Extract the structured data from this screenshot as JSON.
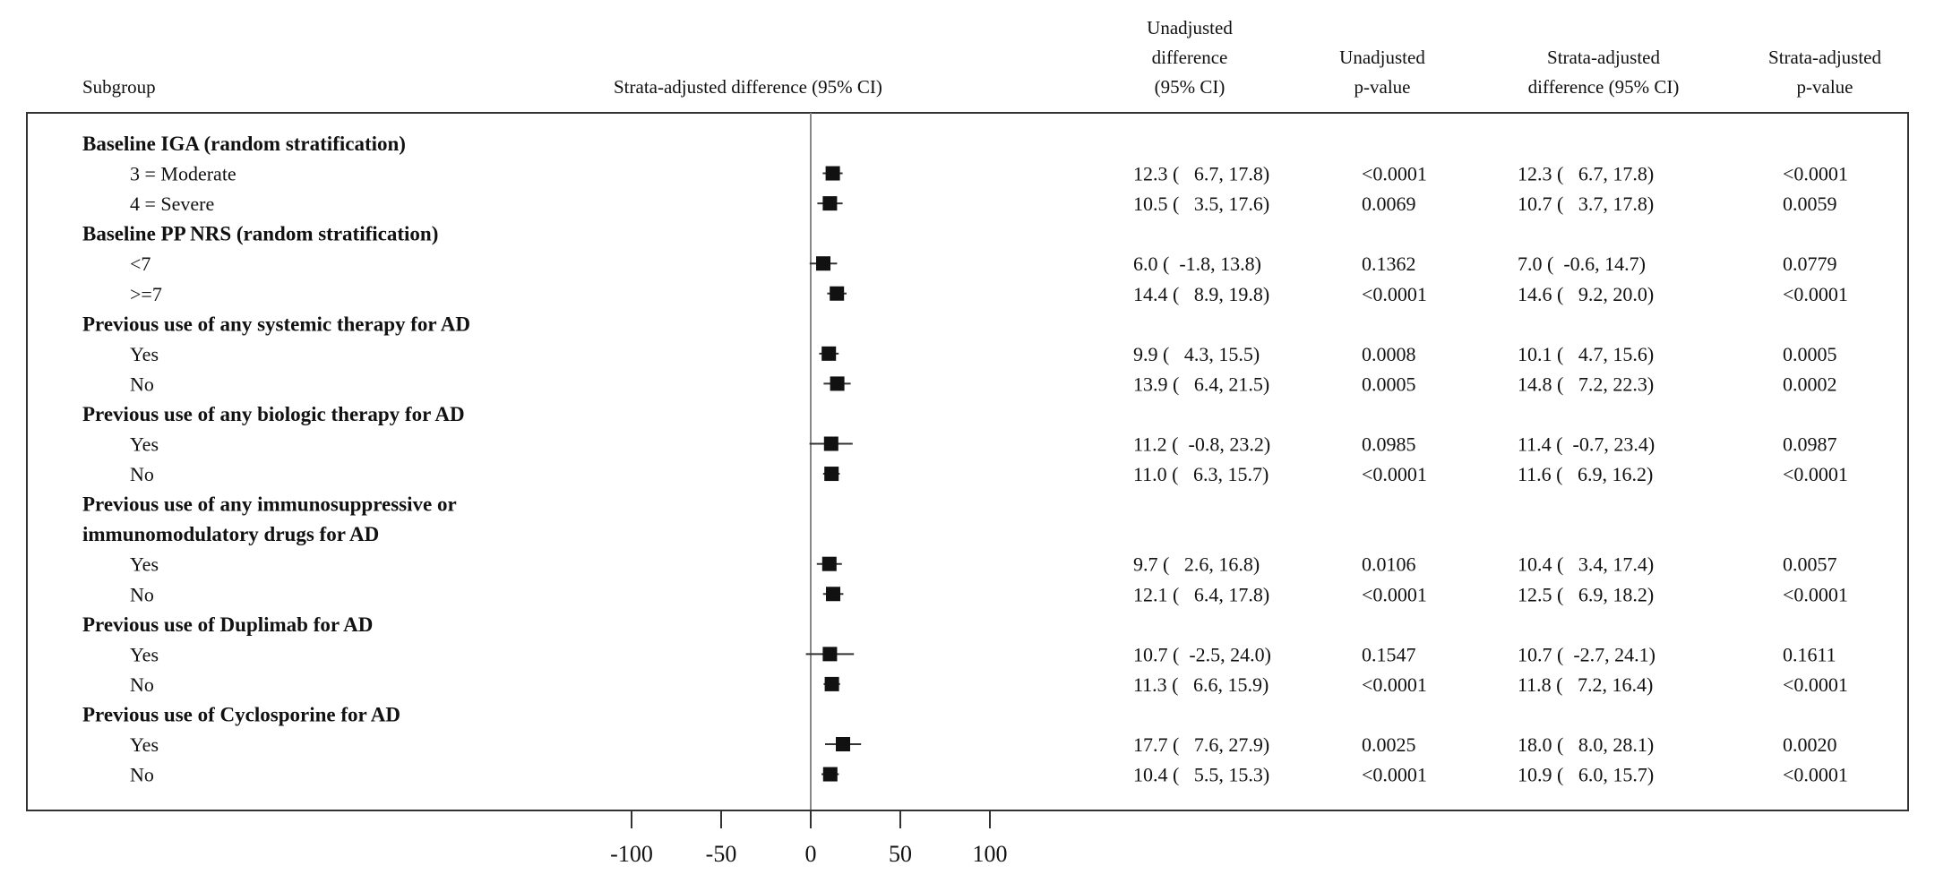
{
  "headers": {
    "subgroup": "Subgroup",
    "plot": "Strata-adjusted difference (95% CI)",
    "unadj_diff": [
      "Unadjusted",
      "difference",
      "(95% CI)"
    ],
    "unadj_p": [
      "Unadjusted",
      "p-value"
    ],
    "strata_diff": [
      "Strata-adjusted",
      "difference (95% CI)"
    ],
    "strata_p": [
      "Strata-adjusted",
      "p-value"
    ]
  },
  "chart_data": {
    "type": "forest",
    "xlim": [
      -100,
      100
    ],
    "xticks": [
      "-100",
      "-50",
      "0",
      "50",
      "100"
    ],
    "reference_line": 0,
    "rows": [
      {
        "kind": "group",
        "label": "Baseline IGA (random stratification)"
      },
      {
        "kind": "item",
        "label": "3 = Moderate",
        "est": 12.3,
        "lo": 6.7,
        "hi": 17.8,
        "ud": "12.3 (   6.7, 17.8)",
        "up": "<0.0001",
        "sd": "12.3 (   6.7, 17.8)",
        "sp": "<0.0001"
      },
      {
        "kind": "item",
        "label": "4 = Severe",
        "est": 10.7,
        "lo": 3.7,
        "hi": 17.8,
        "ud": "10.5 (   3.5, 17.6)",
        "up": "0.0069",
        "sd": "10.7 (   3.7, 17.8)",
        "sp": "0.0059"
      },
      {
        "kind": "group",
        "label": "Baseline PP NRS (random stratification)"
      },
      {
        "kind": "item",
        "label": "<7",
        "est": 7.0,
        "lo": -0.6,
        "hi": 14.7,
        "ud": "6.0 (  -1.8, 13.8)",
        "up": "0.1362",
        "sd": "7.0 (  -0.6, 14.7)",
        "sp": "0.0779"
      },
      {
        "kind": "item",
        "label": ">=7",
        "est": 14.6,
        "lo": 9.2,
        "hi": 20.0,
        "ud": "14.4 (   8.9, 19.8)",
        "up": "<0.0001",
        "sd": "14.6 (   9.2, 20.0)",
        "sp": "<0.0001"
      },
      {
        "kind": "group",
        "label": "Previous use of any systemic therapy for AD"
      },
      {
        "kind": "item",
        "label": "Yes",
        "est": 10.1,
        "lo": 4.7,
        "hi": 15.6,
        "ud": "9.9 (   4.3, 15.5)",
        "up": "0.0008",
        "sd": "10.1 (   4.7, 15.6)",
        "sp": "0.0005"
      },
      {
        "kind": "item",
        "label": "No",
        "est": 14.8,
        "lo": 7.2,
        "hi": 22.3,
        "ud": "13.9 (   6.4, 21.5)",
        "up": "0.0005",
        "sd": "14.8 (   7.2, 22.3)",
        "sp": "0.0002"
      },
      {
        "kind": "group",
        "label": "Previous use of any biologic therapy for AD"
      },
      {
        "kind": "item",
        "label": "Yes",
        "est": 11.4,
        "lo": -0.7,
        "hi": 23.4,
        "ud": "11.2 (  -0.8, 23.2)",
        "up": "0.0985",
        "sd": "11.4 (  -0.7, 23.4)",
        "sp": "0.0987"
      },
      {
        "kind": "item",
        "label": "No",
        "est": 11.6,
        "lo": 6.9,
        "hi": 16.2,
        "ud": "11.0 (   6.3, 15.7)",
        "up": "<0.0001",
        "sd": "11.6 (   6.9, 16.2)",
        "sp": "<0.0001"
      },
      {
        "kind": "group",
        "label": "Previous use of any immunosuppressive or"
      },
      {
        "kind": "group",
        "label": "immunomodulatory drugs for AD"
      },
      {
        "kind": "item",
        "label": "Yes",
        "est": 10.4,
        "lo": 3.4,
        "hi": 17.4,
        "ud": "9.7 (   2.6, 16.8)",
        "up": "0.0106",
        "sd": "10.4 (   3.4, 17.4)",
        "sp": "0.0057"
      },
      {
        "kind": "item",
        "label": "No",
        "est": 12.5,
        "lo": 6.9,
        "hi": 18.2,
        "ud": "12.1 (   6.4, 17.8)",
        "up": "<0.0001",
        "sd": "12.5 (   6.9, 18.2)",
        "sp": "<0.0001"
      },
      {
        "kind": "group",
        "label": "Previous use of Duplimab for AD"
      },
      {
        "kind": "item",
        "label": "Yes",
        "est": 10.7,
        "lo": -2.7,
        "hi": 24.1,
        "ud": "10.7 (  -2.5, 24.0)",
        "up": "0.1547",
        "sd": "10.7 (  -2.7, 24.1)",
        "sp": "0.1611"
      },
      {
        "kind": "item",
        "label": "No",
        "est": 11.8,
        "lo": 7.2,
        "hi": 16.4,
        "ud": "11.3 (   6.6, 15.9)",
        "up": "<0.0001",
        "sd": "11.8 (   7.2, 16.4)",
        "sp": "<0.0001"
      },
      {
        "kind": "group",
        "label": "Previous use of Cyclosporine for AD"
      },
      {
        "kind": "item",
        "label": "Yes",
        "est": 18.0,
        "lo": 8.0,
        "hi": 28.1,
        "ud": "17.7 (   7.6, 27.9)",
        "up": "0.0025",
        "sd": "18.0 (   8.0, 28.1)",
        "sp": "0.0020"
      },
      {
        "kind": "item",
        "label": "No",
        "est": 10.9,
        "lo": 6.0,
        "hi": 15.7,
        "ud": "10.4 (   5.5, 15.3)",
        "up": "<0.0001",
        "sd": "10.9 (   6.0, 15.7)",
        "sp": "<0.0001"
      }
    ]
  }
}
